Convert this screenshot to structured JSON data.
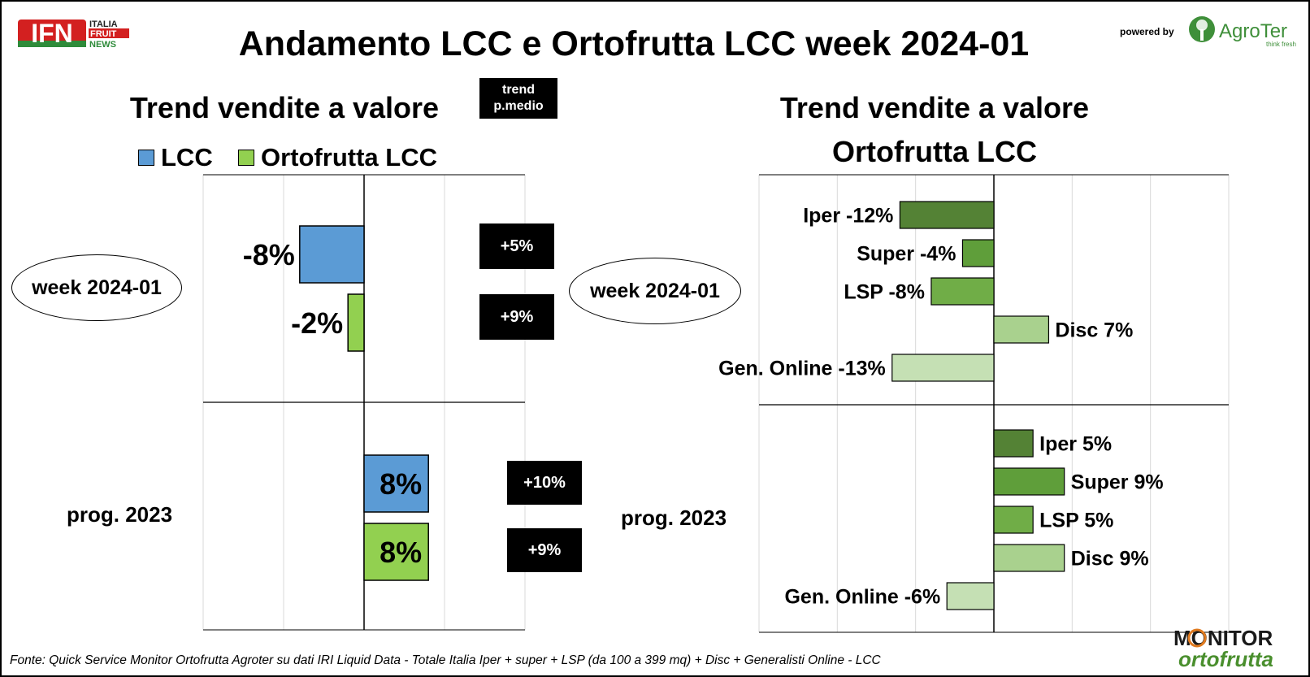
{
  "title": "Andamento LCC e Ortofrutta LCC week 2024-01",
  "logos": {
    "ifn_big": "IFN",
    "ifn_line1": "ITALIA",
    "ifn_line2": "FRUIT",
    "ifn_line3": "NEWS",
    "powered_by": "powered by",
    "agroter": "AgroTer",
    "agroter_tag": "think fresh",
    "monitor_1": "MONITOR",
    "monitor_2": "ortofrutta"
  },
  "footer": "Fonte: Quick Service Monitor Ortofrutta Agroter su dati IRI Liquid Data - Totale Italia Iper + super + LSP (da 100 a 399 mq) + Disc + Generalisti Online - LCC",
  "colors": {
    "lcc": "#5b9bd5",
    "ortofrutta_lcc": "#92d050",
    "iper": "#548235",
    "super": "#5f9e3a",
    "lsp": "#70ad47",
    "disc": "#a9d18e",
    "gen_online": "#c5e0b4"
  },
  "left_panel": {
    "subtitle": "Trend vendite a valore",
    "trend_badge": "trend\np.medio",
    "legend": [
      "LCC",
      "Ortofrutta LCC"
    ],
    "groups": [
      "week 2024-01",
      "prog. 2023"
    ],
    "price_badges": [
      [
        "+5%",
        "+9%"
      ],
      [
        "+10%",
        "+9%"
      ]
    ]
  },
  "right_panel": {
    "subtitle": "Trend vendite a valore\nOrtofrutta LCC",
    "groups": [
      "week 2024-01",
      "prog. 2023"
    ]
  },
  "chart_data": [
    {
      "type": "bar",
      "orientation": "horizontal",
      "title": "Trend vendite a valore",
      "categories": [
        "week 2024-01",
        "prog. 2023"
      ],
      "series": [
        {
          "name": "LCC",
          "values": [
            -8,
            8
          ],
          "labels": [
            "-8%",
            "8%"
          ]
        },
        {
          "name": "Ortofrutta LCC",
          "values": [
            -2,
            8
          ],
          "labels": [
            "-2%",
            "8%"
          ]
        }
      ],
      "xlim": [
        -20,
        20
      ],
      "unit": "%",
      "grid": true
    },
    {
      "type": "bar",
      "orientation": "horizontal",
      "title": "Trend vendite a valore Ortofrutta LCC",
      "categories": [
        "week 2024-01",
        "prog. 2023"
      ],
      "series": [
        {
          "name": "Iper",
          "values": [
            -12,
            5
          ],
          "labels": [
            "Iper -12%",
            "Iper 5%"
          ]
        },
        {
          "name": "Super",
          "values": [
            -4,
            9
          ],
          "labels": [
            "Super -4%",
            "Super 9%"
          ]
        },
        {
          "name": "LSP",
          "values": [
            -8,
            5
          ],
          "labels": [
            "LSP -8%",
            "LSP 5%"
          ]
        },
        {
          "name": "Disc",
          "values": [
            7,
            9
          ],
          "labels": [
            "Disc 7%",
            "Disc 9%"
          ]
        },
        {
          "name": "Gen. Online",
          "values": [
            -13,
            -6
          ],
          "labels": [
            "Gen. Online -13%",
            "Gen. Online -6%"
          ]
        }
      ],
      "xlim": [
        -30,
        30
      ],
      "unit": "%",
      "grid": true
    }
  ]
}
